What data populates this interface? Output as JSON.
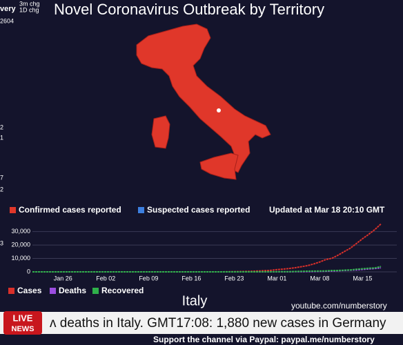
{
  "header": {
    "title": "Novel Coronavirus Outbreak by Territory",
    "fragments": [
      "very",
      "3m chg",
      "1D chg",
      "2604",
      "2",
      "1",
      "7",
      "2",
      "3"
    ]
  },
  "map_legend": {
    "items": [
      {
        "label": "Confirmed cases reported",
        "color": "#e0372a"
      },
      {
        "label": "Suspected cases reported",
        "color": "#3d7fe0"
      }
    ],
    "updated": "Updated at Mar 18 20:10 GMT"
  },
  "chart_data": {
    "type": "line",
    "title": "Italy",
    "categories": [
      null,
      null,
      null,
      null,
      null,
      "Jan 26",
      null,
      null,
      null,
      null,
      null,
      null,
      "Feb 02",
      null,
      null,
      null,
      null,
      null,
      null,
      "Feb 09",
      null,
      null,
      null,
      null,
      null,
      null,
      "Feb 16",
      null,
      null,
      null,
      null,
      null,
      null,
      "Feb 23",
      null,
      null,
      null,
      null,
      null,
      null,
      "Mar 01",
      null,
      null,
      null,
      null,
      null,
      null,
      "Mar 08",
      null,
      null,
      null,
      null,
      null,
      null,
      "Mar 15",
      null,
      null,
      null
    ],
    "series": [
      {
        "name": "Cases",
        "color": "#d9302a",
        "values": [
          0,
          0,
          0,
          0,
          0,
          0,
          0,
          0,
          0,
          0,
          2,
          2,
          2,
          2,
          2,
          2,
          3,
          3,
          3,
          3,
          3,
          3,
          3,
          3,
          3,
          3,
          3,
          3,
          3,
          3,
          3,
          20,
          79,
          150,
          227,
          320,
          445,
          650,
          888,
          1128,
          1694,
          2036,
          2502,
          3089,
          3858,
          4636,
          5883,
          7375,
          9172,
          10149,
          12462,
          15113,
          17660,
          21157,
          24747,
          27980,
          31506,
          35713
        ]
      },
      {
        "name": "Deaths",
        "color": "#9b4de0",
        "values": [
          0,
          0,
          0,
          0,
          0,
          0,
          0,
          0,
          0,
          0,
          0,
          0,
          0,
          0,
          0,
          0,
          0,
          0,
          0,
          0,
          0,
          0,
          0,
          0,
          0,
          0,
          0,
          0,
          0,
          0,
          0,
          1,
          2,
          3,
          7,
          10,
          12,
          17,
          21,
          29,
          34,
          52,
          79,
          107,
          148,
          197,
          233,
          366,
          463,
          631,
          827,
          1016,
          1266,
          1441,
          1809,
          2158,
          2503,
          2978
        ]
      },
      {
        "name": "Recovered",
        "color": "#2fb04a",
        "values": [
          0,
          0,
          0,
          0,
          0,
          0,
          0,
          0,
          0,
          0,
          0,
          0,
          0,
          0,
          0,
          0,
          0,
          0,
          0,
          0,
          0,
          0,
          0,
          0,
          0,
          0,
          0,
          0,
          0,
          0,
          0,
          0,
          0,
          0,
          1,
          1,
          3,
          45,
          46,
          46,
          83,
          149,
          160,
          276,
          414,
          523,
          589,
          622,
          724,
          1004,
          1045,
          1258,
          1439,
          1966,
          2335,
          2749,
          2941,
          4025
        ]
      }
    ],
    "ylim": [
      0,
      36000
    ],
    "yticks": [
      0,
      {
        "value": 10000,
        "label": "10,000"
      },
      {
        "value": 20000,
        "label": "20,000"
      },
      {
        "value": 30000,
        "label": "30,000"
      }
    ],
    "grid": true,
    "legend": "bottom-left"
  },
  "footer": {
    "channel": "youtube.com/numberstory",
    "live": "LIVE",
    "news": "NEWS",
    "ticker": "ʌ deaths in Italy. GMT17:08: 1,880 new cases in Germany",
    "support": "Support the channel via Paypal: paypal.me/numberstory"
  }
}
